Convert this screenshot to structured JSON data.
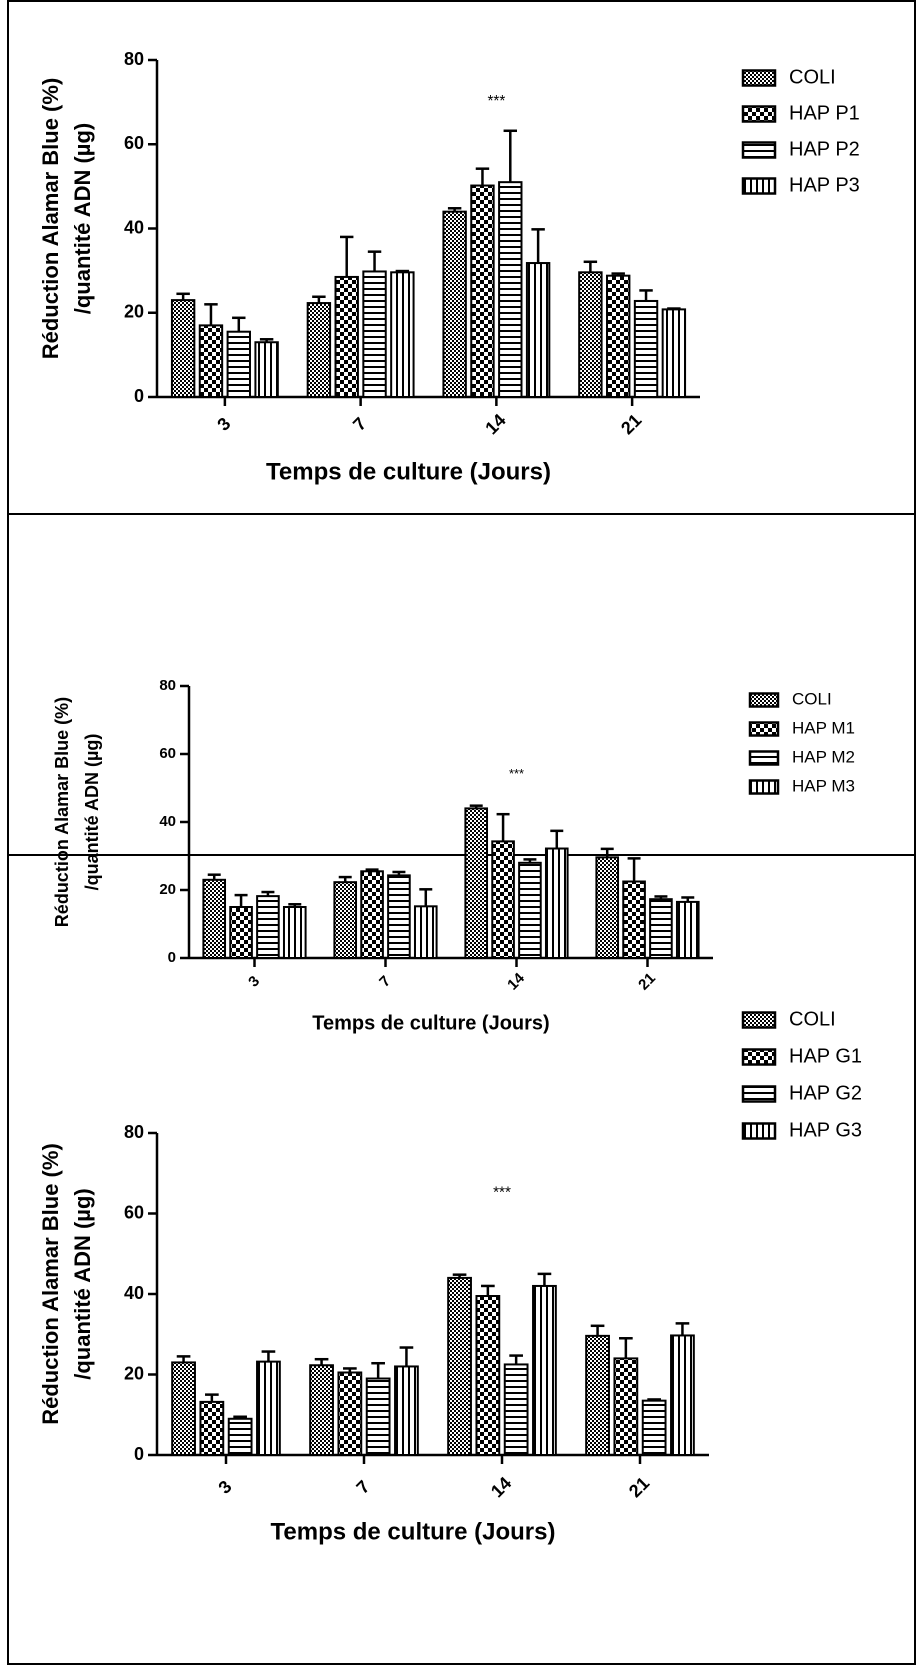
{
  "chart_data": [
    {
      "type": "bar",
      "ylabel": [
        "Réduction Alamar Blue (%)",
        "/quantité ADN (µg)"
      ],
      "xlabel": "Temps de culture (Jours)",
      "categories": [
        "3",
        "7",
        "14",
        "21"
      ],
      "series": [
        {
          "name": "COLI",
          "color": "#000000",
          "pattern": "dots",
          "values": [
            23,
            22.3,
            44,
            29.6
          ],
          "errors": [
            1.5,
            1.5,
            0.8,
            2.5
          ]
        },
        {
          "name": "HAP P1",
          "color": "#000000",
          "pattern": "checker",
          "values": [
            17,
            28.5,
            50.2,
            28.8
          ],
          "errors": [
            5,
            9.5,
            4,
            0.5
          ]
        },
        {
          "name": "HAP P2",
          "color": "#000000",
          "pattern": "hstripes",
          "values": [
            15.5,
            29.8,
            51,
            22.8
          ],
          "errors": [
            3.3,
            4.7,
            12.2,
            2.5
          ]
        },
        {
          "name": "HAP P3",
          "color": "#000000",
          "pattern": "vstripes",
          "values": [
            13,
            29.6,
            31.8,
            20.8
          ],
          "errors": [
            0.7,
            0.3,
            8,
            0.2
          ]
        }
      ],
      "ylim": [
        0,
        80
      ],
      "yticks": [
        0,
        20,
        40,
        60,
        80
      ],
      "annotations": [
        {
          "text": "***",
          "category": "14",
          "y": 70
        }
      ]
    },
    {
      "type": "bar",
      "ylabel": [
        "Réduction Alamar Blue (%)",
        "/quantité ADN (µg)"
      ],
      "xlabel": "Temps de culture (Jours)",
      "categories": [
        "3",
        "7",
        "14",
        "21"
      ],
      "series": [
        {
          "name": "COLI",
          "color": "#000000",
          "pattern": "dots",
          "values": [
            23,
            22.3,
            44,
            29.6
          ],
          "errors": [
            1.5,
            1.5,
            0.8,
            2.5
          ]
        },
        {
          "name": "HAP M1",
          "color": "#000000",
          "pattern": "checker",
          "values": [
            15,
            25.5,
            34.3,
            22.5
          ],
          "errors": [
            3.5,
            0.5,
            8,
            6.8
          ]
        },
        {
          "name": "HAP M2",
          "color": "#000000",
          "pattern": "hstripes",
          "values": [
            18.2,
            24.3,
            28,
            17.3
          ],
          "errors": [
            1.2,
            1,
            1,
            0.8
          ]
        },
        {
          "name": "HAP M3",
          "color": "#000000",
          "pattern": "vstripes",
          "values": [
            15,
            15.2,
            32.2,
            16.5
          ],
          "errors": [
            0.8,
            5,
            5.2,
            1.3
          ]
        }
      ],
      "ylim": [
        0,
        80
      ],
      "yticks": [
        0,
        20,
        40,
        60,
        80
      ],
      "annotations": [
        {
          "text": "***",
          "category": "14",
          "y": 54
        }
      ]
    },
    {
      "type": "bar",
      "ylabel": [
        "Réduction Alamar Blue (%)",
        "/quantité ADN (µg)"
      ],
      "xlabel": "Temps de culture (Jours)",
      "categories": [
        "3",
        "7",
        "14",
        "21"
      ],
      "series": [
        {
          "name": "COLI",
          "color": "#000000",
          "pattern": "dots",
          "values": [
            23,
            22.3,
            44,
            29.6
          ],
          "errors": [
            1.5,
            1.5,
            0.8,
            2.5
          ]
        },
        {
          "name": "HAP G1",
          "color": "#000000",
          "pattern": "checker",
          "values": [
            13.2,
            20.5,
            39.5,
            24
          ],
          "errors": [
            1.8,
            1,
            2.5,
            5
          ]
        },
        {
          "name": "HAP G2",
          "color": "#000000",
          "pattern": "hstripes",
          "values": [
            9,
            19,
            22.5,
            13.5
          ],
          "errors": [
            0.5,
            3.8,
            2.2,
            0.3
          ]
        },
        {
          "name": "HAP G3",
          "color": "#000000",
          "pattern": "vstripes",
          "values": [
            23.2,
            22,
            42,
            29.7
          ],
          "errors": [
            2.5,
            4.7,
            3,
            3
          ]
        }
      ],
      "ylim": [
        0,
        80
      ],
      "yticks": [
        0,
        20,
        40,
        60,
        80
      ],
      "annotations": [
        {
          "text": "***",
          "category": "14",
          "y": 65
        }
      ]
    }
  ]
}
